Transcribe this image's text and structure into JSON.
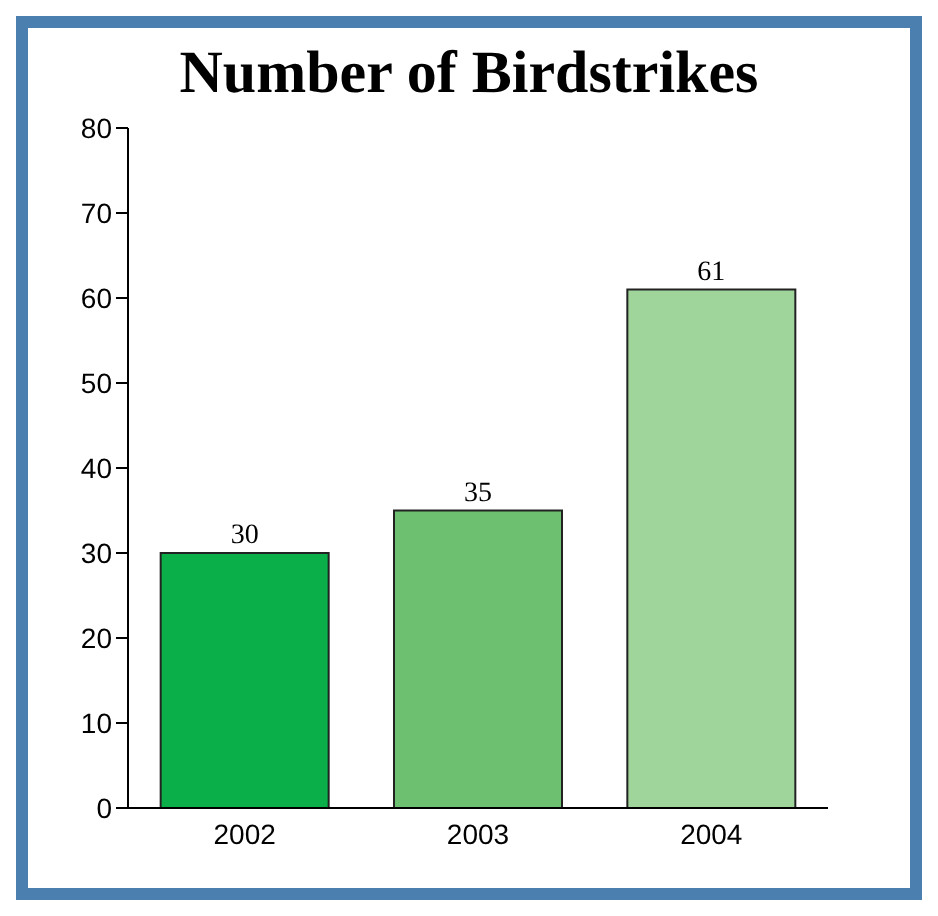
{
  "chart_data": {
    "type": "bar",
    "title": "Number of Birdstrikes",
    "categories": [
      "2002",
      "2003",
      "2004"
    ],
    "values": [
      30,
      35,
      61
    ],
    "colors": [
      "#0aaf4a",
      "#6cc070",
      "#9fd49a"
    ],
    "ylim": [
      0,
      80
    ],
    "yticks": [
      0,
      10,
      20,
      30,
      40,
      50,
      60,
      70,
      80
    ],
    "grid": false,
    "data_labels": true
  }
}
